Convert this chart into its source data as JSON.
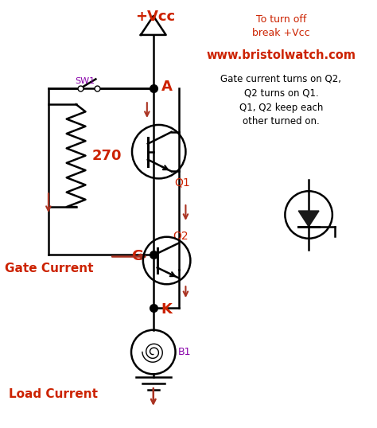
{
  "bg_color": "#ffffff",
  "dark_color": "#000000",
  "red_color": "#cc2200",
  "purple_color": "#8800aa",
  "title_url": "www.bristolwatch.com",
  "note_line1": "To turn off",
  "note_line2": "break +Vcc",
  "gate_text": "Gate current turns on Q2,",
  "gate_text2": "Q2 turns on Q1.",
  "gate_text3": "Q1, Q2 keep each",
  "gate_text4": "other turned on.",
  "vcc_label": "+Vcc",
  "sw_label": "SW1",
  "resistor_label": "270",
  "q1_label": "Q1",
  "q2_label": "Q2",
  "a_label": "A",
  "g_label": "G",
  "k_label": "K",
  "b1_label": "B1",
  "gate_current_label": "Gate Current",
  "load_current_label": "Load Current",
  "arrow_color": "#aa3322"
}
